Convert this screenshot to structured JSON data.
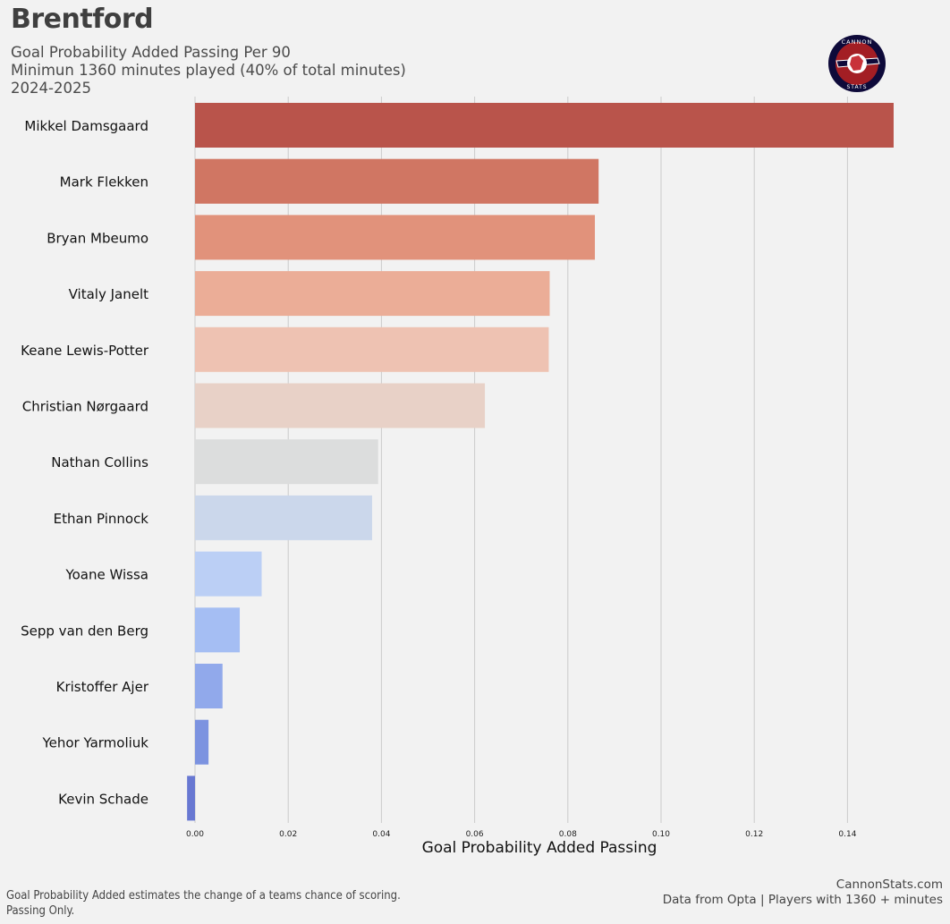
{
  "header": {
    "title": "Brentford",
    "subtitle_lines": [
      "Goal Probability Added Passing Per 90",
      "Minimun 1360 minutes played (40% of total minutes)",
      "2024-2025"
    ]
  },
  "logo": {
    "top_text": "CANNON",
    "bottom_text": "STATS",
    "colors": {
      "ring": "#0e0a3a",
      "inner": "#a31e24",
      "accent": "#ffffff"
    }
  },
  "chart_data": {
    "type": "bar",
    "orientation": "horizontal",
    "xlabel": "Goal Probability Added Passing",
    "xlim": [
      -0.002,
      0.155
    ],
    "xticks": [
      0.0,
      0.02,
      0.04,
      0.06,
      0.08,
      0.1,
      0.12,
      0.14
    ],
    "xtick_labels": [
      "0.00",
      "0.02",
      "0.04",
      "0.06",
      "0.08",
      "0.10",
      "0.12",
      "0.14"
    ],
    "grid": "vertical",
    "categories": [
      "Mikkel Damsgaard",
      "Mark Flekken",
      "Bryan Mbeumo",
      "Vitaly Janelt",
      "Keane Lewis-Potter",
      "Christian Nørgaard",
      "Nathan Collins",
      "Ethan Pinnock",
      "Yoane Wissa",
      "Sepp van den Berg",
      "Kristoffer Ajer",
      "Yehor Yarmoliuk",
      "Kevin Schade"
    ],
    "values": [
      0.1499,
      0.0866,
      0.0858,
      0.0761,
      0.0759,
      0.0622,
      0.0393,
      0.038,
      0.0143,
      0.0096,
      0.0059,
      0.0029,
      -0.0017
    ],
    "colors": [
      "#b9544b",
      "#d07663",
      "#e1927b",
      "#ebad97",
      "#eec2b2",
      "#e8d1c7",
      "#dcdddd",
      "#cbd7eb",
      "#bbcff5",
      "#a5bef3",
      "#91a9eb",
      "#7c93e0",
      "#6878d2"
    ]
  },
  "footer": {
    "left_lines": [
      "Goal Probability Added estimates the change of a teams chance of scoring.",
      "Passing Only."
    ],
    "right_lines": [
      "CannonStats.com",
      "Data from Opta | Players with 1360 + minutes"
    ]
  }
}
